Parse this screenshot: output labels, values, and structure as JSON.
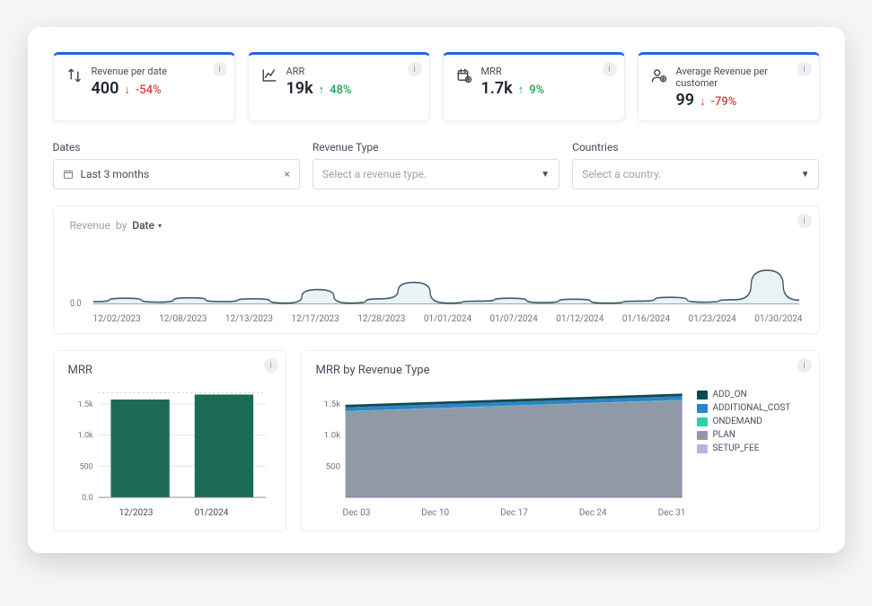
{
  "colors": {
    "accent_top": "#2563eb",
    "bg": "#ffffff",
    "border": "#eceff3",
    "text": "#444c5b",
    "muted": "#9aa1ad",
    "up": "#18a558",
    "down": "#d93a3a"
  },
  "kpis": [
    {
      "icon": "arrows-up-down",
      "title": "Revenue per date",
      "value": "400",
      "direction": "down",
      "delta": "-54%"
    },
    {
      "icon": "chart-line",
      "title": "ARR",
      "value": "19k",
      "direction": "up",
      "delta": "48%"
    },
    {
      "icon": "calendar-money",
      "title": "MRR",
      "value": "1.7k",
      "direction": "up",
      "delta": "9%"
    },
    {
      "icon": "user-money",
      "title": "Average Revenue per customer",
      "value": "99",
      "direction": "down",
      "delta": "-79%"
    }
  ],
  "filters": {
    "dates": {
      "label": "Dates",
      "value": "Last 3 months",
      "clearable": true
    },
    "revenue_type": {
      "label": "Revenue Type",
      "placeholder": "Select a revenue type."
    },
    "countries": {
      "label": "Countries",
      "placeholder": "Select a country."
    }
  },
  "revenue_line": {
    "title_prefix": "Revenue",
    "title_by": "by",
    "dimension": "Date",
    "y0_label": "0.0",
    "type": "line-area",
    "stroke_color": "#3b5f6b",
    "fill_color": "#cfe3e6",
    "x_labels": [
      "12/02/2023",
      "12/08/2023",
      "12/13/2023",
      "12/17/2023",
      "12/28/2023",
      "01/01/2024",
      "01/07/2024",
      "01/12/2024",
      "01/16/2024",
      "01/23/2024",
      "01/30/2024"
    ],
    "points": [
      0.05,
      0.12,
      0.04,
      0.13,
      0.05,
      0.11,
      0.02,
      0.3,
      0.02,
      0.11,
      0.45,
      0.02,
      0.06,
      0.12,
      0.03,
      0.1,
      0.02,
      0.06,
      0.14,
      0.04,
      0.09,
      0.7,
      0.08
    ]
  },
  "mrr_bar": {
    "title": "MRR",
    "type": "bar",
    "bar_color": "#1b6b56",
    "grid_color": "#e2e6ec",
    "dotted_color": "#c2c8d2",
    "ylim": [
      0,
      1700
    ],
    "y_ticks": [
      0,
      500,
      1000,
      1500
    ],
    "y_tick_labels": [
      "0.0",
      "500",
      "1.0k",
      "1.5k"
    ],
    "categories": [
      "12/2023",
      "01/2024"
    ],
    "values": [
      1570,
      1650
    ],
    "bar_width": 0.7
  },
  "mrr_area": {
    "title": "MRR by Revenue Type",
    "type": "stacked-area",
    "ylim": [
      0,
      1700
    ],
    "y_ticks": [
      500,
      1000,
      1500
    ],
    "y_tick_labels": [
      "500",
      "1.0k",
      "1.5k"
    ],
    "x_labels": [
      "Dec 03",
      "Dec 10",
      "Dec 17",
      "Dec 24",
      "Dec 31"
    ],
    "background": "#ffffff",
    "series": [
      {
        "name": "ADD_ON",
        "color": "#0e4a52",
        "start": 40,
        "end": 40
      },
      {
        "name": "ADDITIONAL_COST",
        "color": "#2f82c5",
        "start": 60,
        "end": 60
      },
      {
        "name": "ONDEMAND",
        "color": "#2fd0a8",
        "start": 5,
        "end": 5
      },
      {
        "name": "PLAN",
        "color": "#8f99a8",
        "start": 1380,
        "end": 1560
      },
      {
        "name": "SETUP_FEE",
        "color": "#b9b1e8",
        "start": 0,
        "end": 0
      }
    ]
  }
}
